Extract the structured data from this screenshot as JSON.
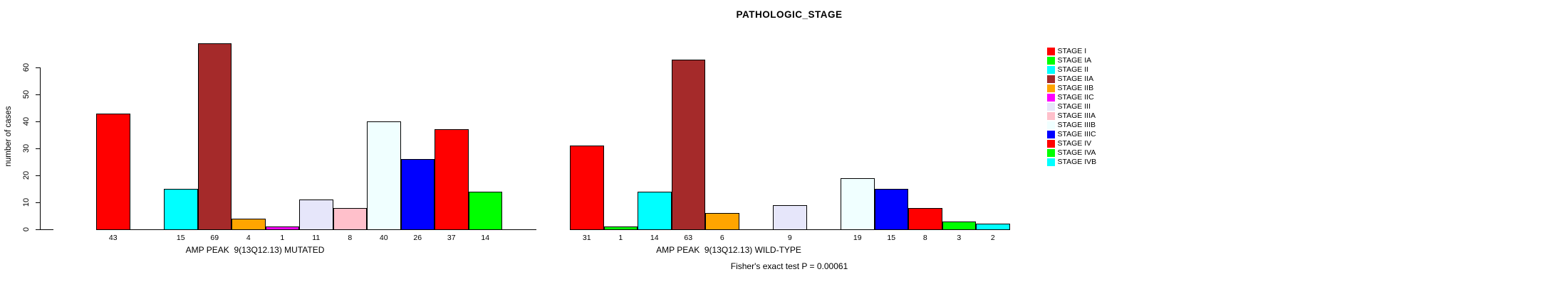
{
  "title": "PATHOLOGIC_STAGE",
  "y_axis": {
    "label": "number of cases",
    "ticks": [
      0,
      10,
      20,
      30,
      40,
      50,
      60
    ]
  },
  "legend": {
    "items": [
      {
        "label": "STAGE I",
        "color": "#FF0000"
      },
      {
        "label": "STAGE IA",
        "color": "#00FF00"
      },
      {
        "label": "STAGE II",
        "color": "#00FFFF"
      },
      {
        "label": "STAGE IIA",
        "color": "#A52A2A"
      },
      {
        "label": "STAGE IIB",
        "color": "#FFA500"
      },
      {
        "label": "STAGE IIC",
        "color": "#FF00FF"
      },
      {
        "label": "STAGE III",
        "color": "#E6E6FA"
      },
      {
        "label": "STAGE IIIA",
        "color": "#FFC0CB"
      },
      {
        "label": "STAGE IIIB",
        "color": "#F0FFFF"
      },
      {
        "label": "STAGE IIIC",
        "color": "#0000FF"
      },
      {
        "label": "STAGE IV",
        "color": "#FF0000"
      },
      {
        "label": "STAGE IVA",
        "color": "#00FF00"
      },
      {
        "label": "STAGE IVB",
        "color": "#00FFFF"
      }
    ]
  },
  "chart_data": [
    {
      "type": "bar",
      "panel": "MUTATED",
      "xlabel": "AMP PEAK  9(13Q12.13) MUTATED",
      "ylabel": "number of cases",
      "ylim": [
        0,
        69
      ],
      "grid": false,
      "categories": [
        "STAGE I",
        "STAGE IA",
        "STAGE II",
        "STAGE IIA",
        "STAGE IIB",
        "STAGE IIC",
        "STAGE III",
        "STAGE IIIA",
        "STAGE IIIB",
        "STAGE IIIC",
        "STAGE IV",
        "STAGE IVA",
        "STAGE IVB"
      ],
      "values": [
        43,
        0,
        15,
        69,
        4,
        1,
        11,
        8,
        40,
        26,
        37,
        14,
        0
      ]
    },
    {
      "type": "bar",
      "panel": "WILD-TYPE",
      "xlabel": "AMP PEAK  9(13Q12.13) WILD-TYPE",
      "ylabel": "number of cases",
      "ylim": [
        0,
        69
      ],
      "grid": false,
      "categories": [
        "STAGE I",
        "STAGE IA",
        "STAGE II",
        "STAGE IIA",
        "STAGE IIB",
        "STAGE IIC",
        "STAGE III",
        "STAGE IIIA",
        "STAGE IIIB",
        "STAGE IIIC",
        "STAGE IV",
        "STAGE IVA",
        "STAGE IVB"
      ],
      "values": [
        31,
        1,
        14,
        63,
        6,
        0,
        9,
        0,
        19,
        15,
        8,
        3,
        2
      ]
    }
  ],
  "footer": {
    "fisher_text": "Fisher's exact test P = 0.00061"
  }
}
